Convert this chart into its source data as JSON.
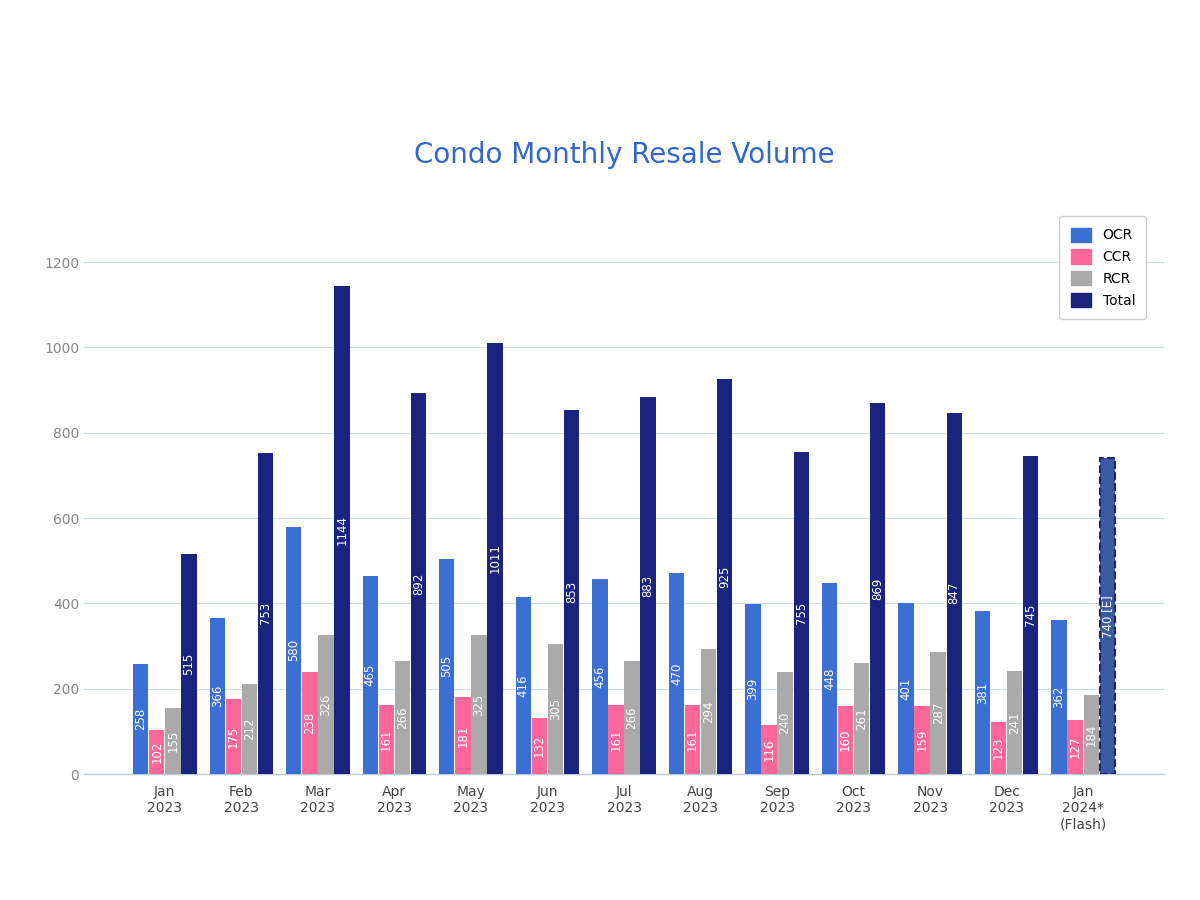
{
  "title": "Condo Monthly Resale Volume",
  "categories": [
    "Jan\n2023",
    "Feb\n2023",
    "Mar\n2023",
    "Apr\n2023",
    "May\n2023",
    "Jun\n2023",
    "Jul\n2023",
    "Aug\n2023",
    "Sep\n2023",
    "Oct\n2023",
    "Nov\n2023",
    "Dec\n2023",
    "Jan\n2024*\n(Flash)"
  ],
  "OCR": [
    258,
    366,
    580,
    465,
    505,
    416,
    456,
    470,
    399,
    448,
    401,
    381,
    362
  ],
  "CCR": [
    102,
    175,
    238,
    161,
    181,
    132,
    161,
    161,
    116,
    160,
    159,
    123,
    127
  ],
  "RCR": [
    155,
    212,
    326,
    266,
    325,
    305,
    266,
    294,
    240,
    261,
    287,
    241,
    184
  ],
  "Total": [
    515,
    753,
    1144,
    892,
    1011,
    853,
    883,
    925,
    755,
    869,
    847,
    745,
    740
  ],
  "total_label_last": "740 [E]",
  "ocr_color": "#3B6FD4",
  "ccr_color": "#FF6699",
  "rcr_color": "#AAAAAA",
  "total_color": "#1A237E",
  "total_last_color": "#3A5BA0",
  "background_color": "#FFFFFF",
  "title_color": "#3366CC",
  "title_fontsize": 20,
  "bar_label_fontsize": 8.5,
  "ylim": [
    0,
    1350
  ],
  "yticks": [
    0,
    200,
    400,
    600,
    800,
    1000,
    1200
  ]
}
